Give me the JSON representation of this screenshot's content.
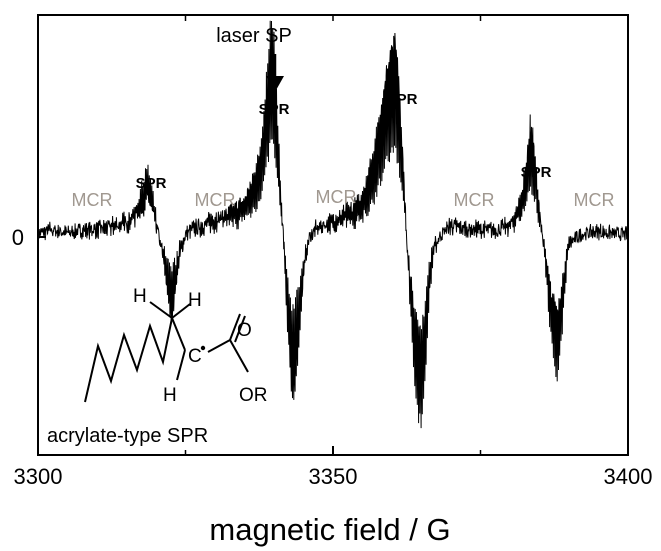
{
  "chart_data": {
    "type": "line",
    "xlabel": "magnetic field / G",
    "ylabel": "",
    "xlim": [
      3300,
      3400
    ],
    "x_ticks": [
      "3300",
      "3350",
      "3400"
    ],
    "x_ticks_values": [
      3300,
      3350,
      3400
    ],
    "y_ticks": [
      "0"
    ],
    "y_ticks_values": [
      0
    ],
    "ylim": [
      -1.0,
      1.0
    ],
    "grid": false,
    "legend": "none",
    "line_color": "#000000",
    "series": [
      {
        "x": [
          3300,
          3302,
          3305,
          3308,
          3311,
          3313,
          3315,
          3316,
          3317,
          3318,
          3318.5,
          3319,
          3319.5,
          3320,
          3320.5,
          3321,
          3321.5,
          3322,
          3322.5,
          3323,
          3323.5,
          3324,
          3324.5,
          3325,
          3326,
          3328,
          3330,
          3333,
          3335,
          3336,
          3337,
          3338,
          3338.5,
          3339,
          3339.5,
          3340,
          3340.5,
          3341,
          3341.5,
          3342,
          3342.5,
          3343,
          3343.5,
          3344,
          3344.5,
          3345,
          3345.5,
          3346,
          3347,
          3348,
          3350,
          3352,
          3354,
          3355,
          3356,
          3357,
          3358,
          3359,
          3360,
          3360.5,
          3361,
          3361.5,
          3362,
          3362.5,
          3363,
          3363.5,
          3364,
          3364.5,
          3365,
          3365.5,
          3366,
          3366.5,
          3367,
          3368,
          3369,
          3370,
          3372,
          3375,
          3378,
          3380,
          3381,
          3382,
          3382.5,
          3383,
          3383.5,
          3384,
          3384.5,
          3385,
          3385.5,
          3386,
          3386.5,
          3387,
          3387.5,
          3388,
          3388.5,
          3389,
          3389.5,
          3390,
          3392,
          3395,
          3398,
          3400
        ],
        "y": [
          0.02,
          0.05,
          0.03,
          0.05,
          0.06,
          0.08,
          0.1,
          0.14,
          0.2,
          0.28,
          0.35,
          0.3,
          0.2,
          0.1,
          0.0,
          -0.1,
          -0.2,
          -0.32,
          -0.45,
          -0.38,
          -0.25,
          -0.12,
          -0.05,
          0.02,
          0.05,
          0.08,
          0.12,
          0.16,
          0.22,
          0.3,
          0.4,
          0.55,
          0.75,
          0.95,
          1.15,
          1.05,
          0.7,
          0.35,
          0.05,
          -0.3,
          -0.6,
          -0.85,
          -0.9,
          -0.7,
          -0.45,
          -0.25,
          -0.1,
          0.0,
          0.05,
          0.08,
          0.1,
          0.14,
          0.18,
          0.25,
          0.35,
          0.5,
          0.7,
          0.95,
          1.1,
          1.15,
          1.0,
          0.7,
          0.35,
          0.0,
          -0.3,
          -0.6,
          -0.8,
          -0.9,
          -0.95,
          -0.8,
          -0.5,
          -0.25,
          -0.1,
          0.0,
          0.05,
          0.08,
          0.06,
          0.05,
          0.05,
          0.08,
          0.15,
          0.25,
          0.35,
          0.5,
          0.65,
          0.55,
          0.35,
          0.15,
          0.0,
          -0.15,
          -0.35,
          -0.5,
          -0.6,
          -0.7,
          -0.6,
          -0.4,
          -0.2,
          -0.05,
          0.02,
          0.04,
          0.02,
          0.02
        ]
      }
    ],
    "annotations": [
      {
        "text": "laser SP"
      },
      {
        "text": "SPR"
      },
      {
        "text": "SPR"
      },
      {
        "text": "SPR"
      },
      {
        "text": "SPR"
      },
      {
        "text": "SPR"
      },
      {
        "text": "MCR"
      },
      {
        "text": "MCR"
      },
      {
        "text": "MCR"
      },
      {
        "text": "MCR"
      },
      {
        "text": "MCR"
      }
    ],
    "structure_labels": {
      "h1": "H",
      "h2": "H",
      "h3": "H",
      "c": "C",
      "o": "O",
      "or": "OR",
      "caption": "acrylate-type SPR"
    },
    "colors": {
      "spr": "#000000",
      "mcr": "#a09890"
    }
  }
}
